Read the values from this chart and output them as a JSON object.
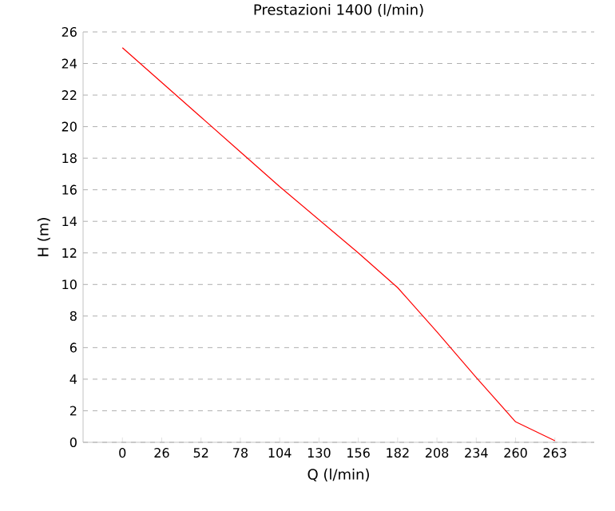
{
  "chart_data": {
    "type": "line",
    "title": "Prestazioni 1400 (l/min)",
    "xlabel": "Q (l/min)",
    "ylabel": "H (m)",
    "categories": [
      "0",
      "26",
      "52",
      "78",
      "104",
      "130",
      "156",
      "182",
      "208",
      "234",
      "260",
      "263"
    ],
    "series": [
      {
        "color": "#ff0000",
        "values": [
          25.0,
          22.8,
          20.6,
          18.4,
          16.2,
          14.1,
          12.0,
          9.8,
          7.0,
          4.1,
          1.3,
          0.1
        ]
      }
    ],
    "ylim": [
      0,
      26
    ],
    "yticks": [
      0,
      2,
      4,
      6,
      8,
      10,
      12,
      14,
      16,
      18,
      20,
      22,
      24,
      26
    ],
    "grid": "y",
    "marker": "none",
    "line_style": "solid"
  }
}
